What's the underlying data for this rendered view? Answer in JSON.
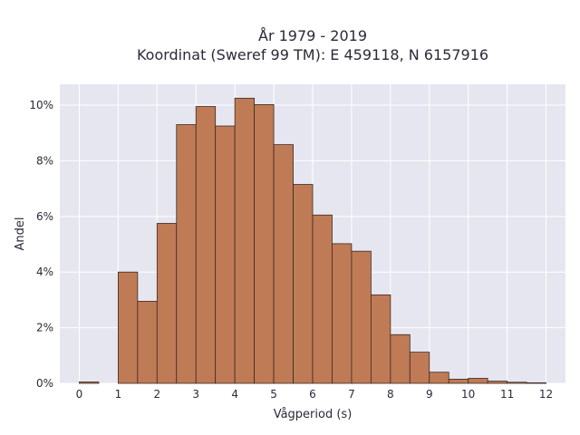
{
  "chart_data": {
    "type": "bar",
    "title_line1": "År 1979 - 2019",
    "title_line2": "Koordinat (Sweref 99 TM): E 459118, N 6157916",
    "xlabel": "Vågperiod (s)",
    "ylabel": "Andel",
    "xlim": [
      -0.5,
      12.5
    ],
    "ylim": [
      0,
      10.75
    ],
    "x_ticks": [
      0,
      1,
      2,
      3,
      4,
      5,
      6,
      7,
      8,
      9,
      10,
      11,
      12
    ],
    "x_tick_labels": [
      "0",
      "1",
      "2",
      "3",
      "4",
      "5",
      "6",
      "7",
      "8",
      "9",
      "10",
      "11",
      "12"
    ],
    "y_ticks": [
      0,
      2,
      4,
      6,
      8,
      10
    ],
    "y_tick_labels": [
      "0%",
      "2%",
      "4%",
      "6%",
      "8%",
      "10%"
    ],
    "grid": true,
    "bin_width": 0.5,
    "bins": [
      {
        "x0": 0.0,
        "value": 0.05
      },
      {
        "x0": 1.0,
        "value": 4.0
      },
      {
        "x0": 1.5,
        "value": 2.95
      },
      {
        "x0": 2.0,
        "value": 5.75
      },
      {
        "x0": 2.5,
        "value": 9.3
      },
      {
        "x0": 3.0,
        "value": 9.95
      },
      {
        "x0": 3.5,
        "value": 9.25
      },
      {
        "x0": 4.0,
        "value": 10.25
      },
      {
        "x0": 4.5,
        "value": 10.02
      },
      {
        "x0": 5.0,
        "value": 8.58
      },
      {
        "x0": 5.5,
        "value": 7.15
      },
      {
        "x0": 6.0,
        "value": 6.05
      },
      {
        "x0": 6.5,
        "value": 5.02
      },
      {
        "x0": 7.0,
        "value": 4.75
      },
      {
        "x0": 7.5,
        "value": 3.18
      },
      {
        "x0": 8.0,
        "value": 1.75
      },
      {
        "x0": 8.5,
        "value": 1.12
      },
      {
        "x0": 9.0,
        "value": 0.4
      },
      {
        "x0": 9.5,
        "value": 0.15
      },
      {
        "x0": 10.0,
        "value": 0.18
      },
      {
        "x0": 10.5,
        "value": 0.08
      },
      {
        "x0": 11.0,
        "value": 0.04
      },
      {
        "x0": 11.5,
        "value": 0.02
      }
    ],
    "colors": {
      "bar_fill": "#bf7b56",
      "bar_edge": "#3b2a22",
      "plot_bg": "#e6e6f0",
      "grid": "#ffffff"
    }
  }
}
